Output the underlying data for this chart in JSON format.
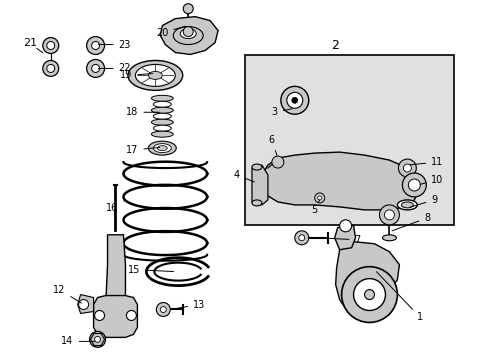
{
  "bg_color": "#ffffff",
  "line_color": "#000000",
  "part_color": "#c8c8c8",
  "box_bg": "#e0e0e0",
  "fig_width": 4.89,
  "fig_height": 3.6,
  "dpi": 100
}
